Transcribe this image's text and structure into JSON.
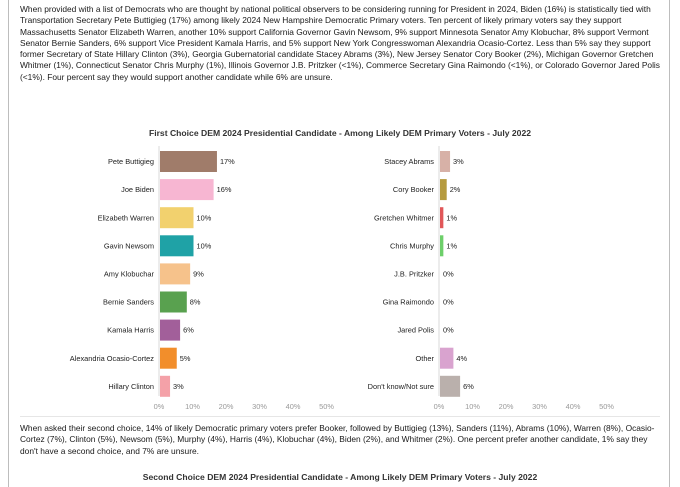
{
  "intro_text": "When provided with a list of Democrats who are thought by national political observers to be considering running for President in 2024, Biden (16%) is statistically tied with Transportation Secretary Pete Buttigieg (17%) among likely 2024 New Hampshire Democratic Primary voters. Ten percent of likely primary voters say they support Massachusetts Senator Elizabeth Warren, another 10% support California Governor Gavin Newsom, 9% support Minnesota Senator Amy Klobuchar, 8% support Vermont Senator Bernie Sanders, 6% support Vice President Kamala Harris, and 5% support New York Congresswoman Alexandria Ocasio-Cortez. Less than 5% say they support former Secretary of State Hillary Clinton (3%), Georgia Gubernatorial candidate Stacey Abrams (3%), New Jersey Senator Cory Booker (2%), Michigan Governor Gretchen Whitmer (1%), Connecticut Senator Chris Murphy (1%), Illinois Governor J.B. Pritzker (<1%), Commerce Secretary Gina Raimondo (<1%), or Colorado Governor Jared Polis (<1%). Four percent say they would support another candidate while 6% are unsure.",
  "chart_title": "First Choice DEM 2024 Presidential Candidate - Among Likely DEM Primary Voters - July 2022",
  "second_choice_text": "When asked their second choice, 14% of likely Democratic primary voters prefer Booker, followed by Buttigieg (13%), Sanders (11%), Abrams (10%), Warren (8%), Ocasio-Cortez (7%), Clinton (5%), Newsom (5%), Murphy (4%), Harris (4%), Klobuchar (4%), Biden (2%), and Whitmer (2%). One percent prefer another candidate, 1% say they don't have a second choice, and 7% are unsure.",
  "second_chart_title": "Second Choice DEM 2024 Presidential Candidate - Among Likely DEM Primary Voters - July 2022",
  "chart_data": [
    {
      "type": "bar",
      "orientation": "horizontal",
      "categories": [
        "Pete Buttigieg",
        "Joe Biden",
        "Elizabeth Warren",
        "Gavin Newsom",
        "Amy Klobuchar",
        "Bernie Sanders",
        "Kamala Harris",
        "Alexandria Ocasio-Cortez",
        "Hillary Clinton"
      ],
      "values": [
        17,
        16,
        10,
        10,
        9,
        8,
        6,
        5,
        3
      ],
      "data_labels": [
        "17%",
        "16%",
        "10%",
        "10%",
        "9%",
        "8%",
        "6%",
        "5%",
        "3%"
      ],
      "colors": [
        "#a07c6a",
        "#f7b6d2",
        "#f2d16e",
        "#1fa2a6",
        "#f6c28b",
        "#59a14f",
        "#a25f9a",
        "#f28e2b",
        "#f4a1a8"
      ],
      "xlim": [
        0,
        50
      ],
      "ticks": [
        "0%",
        "10%",
        "20%",
        "30%",
        "40%",
        "50%"
      ],
      "grid": false,
      "legend": "none"
    },
    {
      "type": "bar",
      "orientation": "horizontal",
      "categories": [
        "Stacey Abrams",
        "Cory Booker",
        "Gretchen Whitmer",
        "Chris Murphy",
        "J.B. Pritzker",
        "Gina Raimondo",
        "Jared Polis",
        "Other",
        "Don't know/Not sure"
      ],
      "values": [
        3,
        2,
        1,
        1,
        0,
        0,
        0,
        4,
        6
      ],
      "data_labels": [
        "3%",
        "2%",
        "1%",
        "1%",
        "0%",
        "0%",
        "0%",
        "4%",
        "6%"
      ],
      "colors": [
        "#d7b1a7",
        "#b59a3e",
        "#e15759",
        "#6dcf6a",
        "#9c9c9c",
        "#9c9c9c",
        "#9c9c9c",
        "#d9a3cf",
        "#bab0ac"
      ],
      "xlim": [
        0,
        50
      ],
      "ticks": [
        "0%",
        "10%",
        "20%",
        "30%",
        "40%",
        "50%"
      ],
      "grid": false,
      "legend": "none"
    }
  ]
}
